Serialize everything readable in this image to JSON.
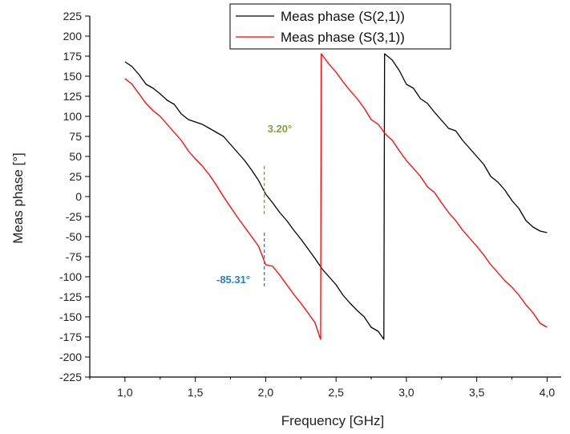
{
  "chart_data": {
    "type": "line",
    "title": "",
    "xlabel": "Frequency [GHz]",
    "ylabel": "Meas phase [°]",
    "xlim": [
      0.75,
      4.1
    ],
    "ylim": [
      -225,
      225
    ],
    "x_ticks": [
      1.0,
      1.5,
      2.0,
      2.5,
      3.0,
      3.5,
      4.0
    ],
    "x_tick_labels": [
      "1,0",
      "1,5",
      "2,0",
      "2,5",
      "3,0",
      "3,5",
      "4,0"
    ],
    "y_ticks": [
      -225,
      -200,
      -175,
      -150,
      -125,
      -100,
      -75,
      -50,
      -25,
      0,
      25,
      50,
      75,
      100,
      125,
      150,
      175,
      200,
      225
    ],
    "y_tick_labels": [
      "-225",
      "-200",
      "-175",
      "-150",
      "-125",
      "-100",
      "-75",
      "-50",
      "-25",
      "0",
      "25",
      "50",
      "75",
      "100",
      "125",
      "150",
      "175",
      "200",
      "225"
    ],
    "grid": false,
    "legend_position": "top-right",
    "series": [
      {
        "name": "Meas phase (S(2,1))",
        "color": "#000000",
        "points": [
          [
            1.0,
            168
          ],
          [
            1.05,
            162
          ],
          [
            1.1,
            152
          ],
          [
            1.15,
            140
          ],
          [
            1.2,
            135
          ],
          [
            1.25,
            128
          ],
          [
            1.3,
            120
          ],
          [
            1.35,
            115
          ],
          [
            1.4,
            103
          ],
          [
            1.45,
            96
          ],
          [
            1.5,
            93
          ],
          [
            1.55,
            90
          ],
          [
            1.6,
            85
          ],
          [
            1.65,
            80
          ],
          [
            1.7,
            75
          ],
          [
            1.75,
            65
          ],
          [
            1.8,
            55
          ],
          [
            1.85,
            45
          ],
          [
            1.9,
            33
          ],
          [
            1.95,
            20
          ],
          [
            2.0,
            3
          ],
          [
            2.05,
            -8
          ],
          [
            2.1,
            -20
          ],
          [
            2.15,
            -30
          ],
          [
            2.2,
            -42
          ],
          [
            2.25,
            -53
          ],
          [
            2.3,
            -65
          ],
          [
            2.35,
            -77
          ],
          [
            2.4,
            -90
          ],
          [
            2.45,
            -100
          ],
          [
            2.5,
            -110
          ],
          [
            2.55,
            -123
          ],
          [
            2.6,
            -133
          ],
          [
            2.65,
            -142
          ],
          [
            2.7,
            -150
          ],
          [
            2.75,
            -163
          ],
          [
            2.8,
            -168
          ],
          [
            2.84,
            -178
          ],
          [
            2.845,
            178
          ],
          [
            2.9,
            170
          ],
          [
            2.95,
            157
          ],
          [
            3.0,
            140
          ],
          [
            3.05,
            135
          ],
          [
            3.1,
            122
          ],
          [
            3.15,
            116
          ],
          [
            3.2,
            105
          ],
          [
            3.25,
            95
          ],
          [
            3.3,
            85
          ],
          [
            3.35,
            82
          ],
          [
            3.4,
            70
          ],
          [
            3.45,
            60
          ],
          [
            3.5,
            50
          ],
          [
            3.55,
            40
          ],
          [
            3.6,
            25
          ],
          [
            3.65,
            18
          ],
          [
            3.7,
            8
          ],
          [
            3.75,
            -5
          ],
          [
            3.8,
            -15
          ],
          [
            3.85,
            -30
          ],
          [
            3.9,
            -38
          ],
          [
            3.95,
            -43
          ],
          [
            4.0,
            -45
          ]
        ]
      },
      {
        "name": "Meas phase (S(3,1))",
        "color": "#ff0000",
        "points": [
          [
            1.0,
            147
          ],
          [
            1.05,
            140
          ],
          [
            1.1,
            128
          ],
          [
            1.15,
            116
          ],
          [
            1.2,
            107
          ],
          [
            1.25,
            100
          ],
          [
            1.3,
            90
          ],
          [
            1.35,
            80
          ],
          [
            1.4,
            70
          ],
          [
            1.45,
            57
          ],
          [
            1.5,
            47
          ],
          [
            1.55,
            38
          ],
          [
            1.6,
            27
          ],
          [
            1.65,
            14
          ],
          [
            1.7,
            0
          ],
          [
            1.75,
            -13
          ],
          [
            1.8,
            -26
          ],
          [
            1.85,
            -38
          ],
          [
            1.9,
            -50
          ],
          [
            1.95,
            -62
          ],
          [
            2.0,
            -85
          ],
          [
            2.05,
            -87
          ],
          [
            2.1,
            -98
          ],
          [
            2.15,
            -110
          ],
          [
            2.2,
            -122
          ],
          [
            2.25,
            -133
          ],
          [
            2.3,
            -145
          ],
          [
            2.35,
            -157
          ],
          [
            2.39,
            -178
          ],
          [
            2.395,
            178
          ],
          [
            2.45,
            165
          ],
          [
            2.5,
            155
          ],
          [
            2.55,
            143
          ],
          [
            2.6,
            132
          ],
          [
            2.65,
            122
          ],
          [
            2.7,
            110
          ],
          [
            2.75,
            96
          ],
          [
            2.8,
            90
          ],
          [
            2.85,
            78
          ],
          [
            2.9,
            70
          ],
          [
            2.95,
            57
          ],
          [
            3.0,
            45
          ],
          [
            3.05,
            35
          ],
          [
            3.1,
            25
          ],
          [
            3.15,
            12
          ],
          [
            3.2,
            5
          ],
          [
            3.25,
            -8
          ],
          [
            3.3,
            -20
          ],
          [
            3.35,
            -30
          ],
          [
            3.4,
            -42
          ],
          [
            3.45,
            -52
          ],
          [
            3.5,
            -62
          ],
          [
            3.55,
            -73
          ],
          [
            3.6,
            -85
          ],
          [
            3.65,
            -95
          ],
          [
            3.7,
            -105
          ],
          [
            3.75,
            -113
          ],
          [
            3.8,
            -123
          ],
          [
            3.85,
            -135
          ],
          [
            3.9,
            -145
          ],
          [
            3.95,
            -158
          ],
          [
            4.0,
            -163
          ]
        ]
      }
    ],
    "annotations": [
      {
        "text": "3.20°",
        "color": "#7aa63c",
        "x": 2.1,
        "y": 80,
        "line_x": 1.99,
        "line_y1": 38,
        "line_y2": -25
      },
      {
        "text": "-85.31°",
        "color": "#2a7fc0",
        "x": 1.77,
        "y": -108,
        "line_x": 1.99,
        "line_y1": -45,
        "line_y2": -113
      }
    ]
  }
}
